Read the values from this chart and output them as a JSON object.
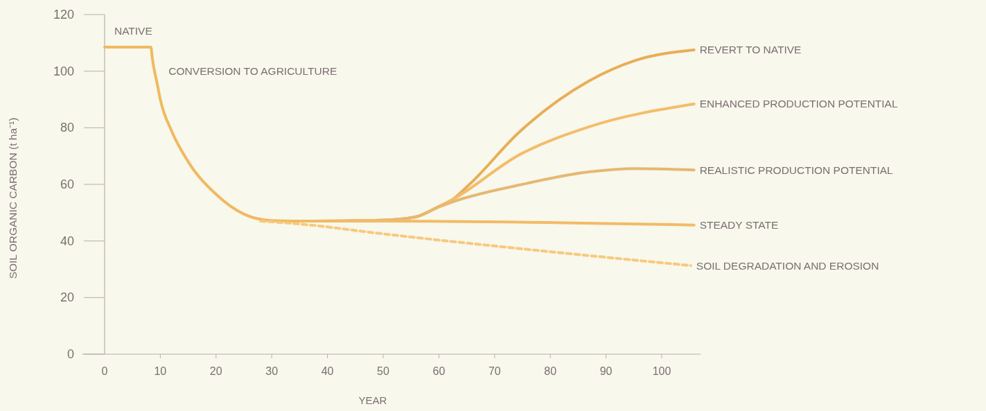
{
  "chart_data": {
    "type": "line",
    "xlabel": "YEAR",
    "ylabel": "SOIL ORGANIC CARBON (t ha⁻¹)",
    "xlim": [
      -4,
      107
    ],
    "ylim": [
      0,
      120
    ],
    "xticks": [
      0,
      10,
      20,
      30,
      40,
      50,
      60,
      70,
      80,
      90,
      100
    ],
    "yticks": [
      0,
      20,
      40,
      60,
      80,
      100,
      120
    ],
    "annotations": [
      "NATIVE",
      "CONVERSION TO AGRICULTURE"
    ],
    "series": [
      {
        "color": "#f0b960",
        "x": [
          0,
          8.3,
          8.6,
          9.5,
          10,
          12,
          15,
          20,
          25,
          30,
          35
        ],
        "values": [
          108.5,
          108.5,
          104,
          95,
          90,
          79,
          68,
          56.5,
          49.5,
          47.2,
          47
        ]
      },
      {
        "name": "REVERT TO NATIVE",
        "color": "#e8ae58",
        "x": [
          35,
          49.6,
          55.8,
          60,
          62.4,
          65.4,
          74.5,
          86.9,
          95.3,
          105.8
        ],
        "values": [
          47,
          47.3,
          48.5,
          52.2,
          54.6,
          59.8,
          78.6,
          96.5,
          103.8,
          107.5
        ]
      },
      {
        "name": "ENHANCED PRODUCTION POTENTIAL",
        "color": "#f3bd6a",
        "x": [
          35,
          49.6,
          55.8,
          60,
          62.4,
          74.5,
          86.9,
          105.8
        ],
        "values": [
          47,
          47.3,
          48.5,
          52.2,
          54.6,
          70.5,
          80.3,
          88.4
        ]
      },
      {
        "name": "REALISTIC PRODUCTION POTENTIAL",
        "color": "#e6b872",
        "x": [
          35,
          49.6,
          55.8,
          60,
          62,
          74.5,
          86.9,
          95.3,
          105.8
        ],
        "values": [
          47,
          47.3,
          48.5,
          52,
          53.5,
          59.8,
          64.4,
          65.6,
          65.1
        ]
      },
      {
        "name": "STEADY STATE",
        "color": "#f2bb66",
        "x": [
          35,
          49.6,
          105.8
        ],
        "values": [
          47,
          47,
          45.6
        ]
      },
      {
        "name": "SOIL DEGRADATION AND EROSION",
        "color": "#f7c97e",
        "line_style": "dashed",
        "x": [
          28,
          35,
          49.6,
          105.2
        ],
        "values": [
          47,
          46,
          42.6,
          31.3
        ]
      }
    ]
  }
}
